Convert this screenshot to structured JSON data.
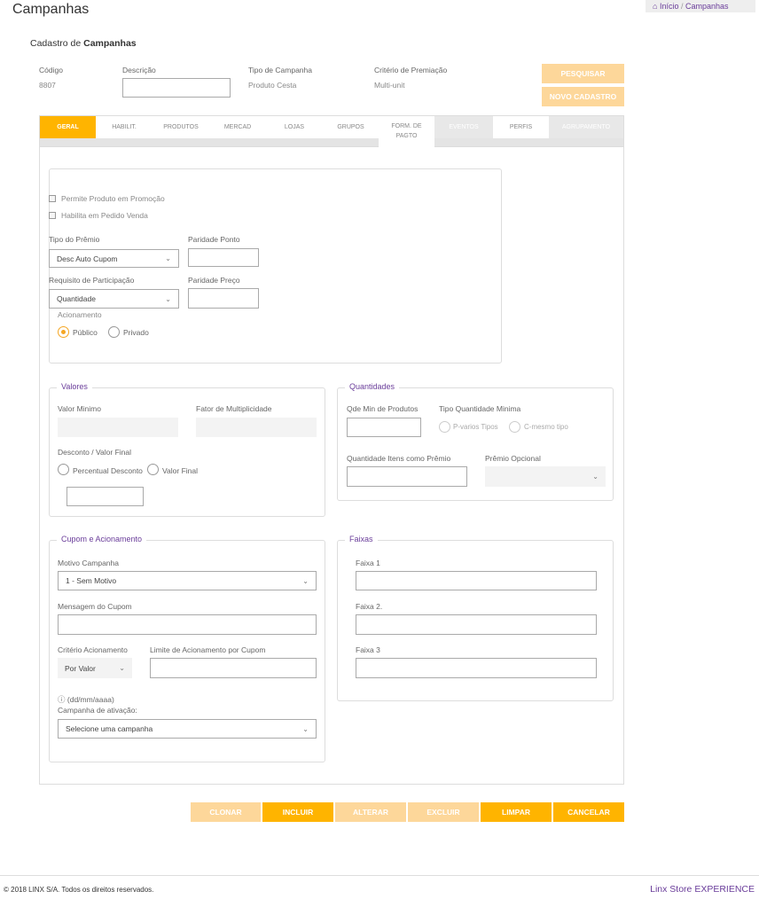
{
  "page": {
    "title": "Campanhas"
  },
  "breadcrumb": {
    "home": "Início",
    "separator": "/",
    "current": "Campanhas"
  },
  "form": {
    "title_prefix": "Cadastro de ",
    "title_bold": "Campanhas"
  },
  "header": {
    "codigo_label": "Código",
    "codigo_value": "8807",
    "descricao_label": "Descrição",
    "descricao_value": "",
    "tipo_label": "Tipo de Campanha",
    "tipo_value": "Produto Cesta",
    "criterio_label": "Critério de Premiação",
    "criterio_value": "Multi-unit",
    "pesquisar": "PESQUISAR",
    "novo": "NOVO CADASTRO"
  },
  "tabs": [
    {
      "label": "GERAL",
      "state": "active"
    },
    {
      "label": "HABILIT.",
      "state": "normal"
    },
    {
      "label": "PRODUTOS",
      "state": "normal"
    },
    {
      "label": "MERCAD",
      "state": "normal"
    },
    {
      "label": "LOJAS",
      "state": "normal"
    },
    {
      "label": "GRUPOS",
      "state": "normal"
    },
    {
      "label": "FORM. DE PAGTO",
      "state": "normal"
    },
    {
      "label": "EVENTOS",
      "state": "disabled"
    },
    {
      "label": "PERFIS",
      "state": "normal"
    },
    {
      "label": "AGRUPAMENTO",
      "state": "disabled"
    }
  ],
  "geral": {
    "permite_promocao": "Permite Produto em Promoção",
    "habilita_pedido": "Habilita em Pedido Venda",
    "tipo_premio_label": "Tipo do Prêmio",
    "tipo_premio_value": "Desc Auto Cupom",
    "paridade_ponto_label": "Paridade Ponto",
    "requisito_label": "Requisito de Participação",
    "requisito_value": "Quantidade",
    "paridade_preco_label": "Paridade Preço",
    "acionamento_label": "Acionamento",
    "publico": "Público",
    "privado": "Privado",
    "acionamento_selected": "Público"
  },
  "valores": {
    "legend": "Valores",
    "valor_minimo": "Valor Minimo",
    "fator": "Fator de Multiplicidade",
    "desconto_label": "Desconto / Valor Final",
    "percentual": "Percentual Desconto",
    "valor_final": "Valor Final"
  },
  "quantidades": {
    "legend": "Quantidades",
    "qde_min": "Qde Min de Produtos",
    "tipo_qtd": "Tipo Quantidade Minima",
    "p_varios": "P-varios Tipos",
    "c_mesmo": "C-mesmo tipo",
    "qtd_itens": "Quantidade Itens como Prêmio",
    "premio_opcional": "Prêmio Opcional"
  },
  "cupom": {
    "legend": "Cupom e Acionamento",
    "motivo_label": "Motivo Campanha",
    "motivo_value": "1 - Sem Motivo",
    "mensagem_label": "Mensagem do Cupom",
    "criterio_label": "Critério Acionamento",
    "criterio_value": "Por Valor",
    "limite_label": "Limite de Acionamento por Cupom",
    "date_hint": "(dd/mm/aaaa)",
    "ativacao_label": "Campanha de ativação:",
    "ativacao_value": "Selecione uma campanha"
  },
  "faixas": {
    "legend": "Faixas",
    "f1": "Faixa 1",
    "f2": "Faixa 2.",
    "f3": "Faixa 3"
  },
  "actions": {
    "clonar": "CLONAR",
    "incluir": "INCLUIR",
    "alterar": "ALTERAR",
    "excluir": "EXCLUIR",
    "limpar": "LIMPAR",
    "cancelar": "CANCELAR"
  },
  "footer": {
    "copyright": "© 2018 LINX S/A. Todos os direitos reservados.",
    "brand_a": "Linx Store ",
    "brand_b": "EXPERIENCE"
  },
  "colors": {
    "accent": "#ffb400",
    "accent_light": "#fdd79a",
    "purple": "#6a3d9a"
  }
}
